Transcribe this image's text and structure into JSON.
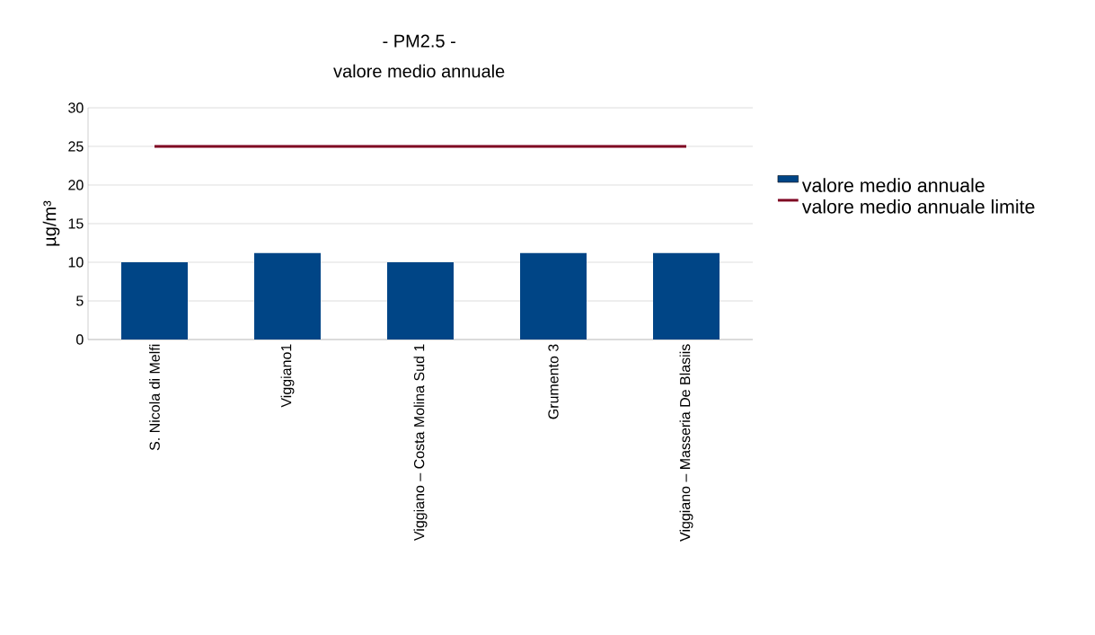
{
  "chart_data": {
    "type": "bar",
    "title": "- PM2.5 -",
    "subtitle": "valore medio annuale",
    "ylabel": "µg/m³",
    "categories": [
      "S. Nicola di Melfi",
      "Viggiano1",
      "Viggiano – Costa Molina Sud 1",
      "Grumento 3",
      "Viggiano – Masseria De Blasiis"
    ],
    "series": [
      {
        "name": "valore medio annuale",
        "color": "#004586",
        "values": [
          10,
          11.2,
          10,
          11.2,
          11.2
        ]
      },
      {
        "name": "valore medio annuale limite",
        "type": "line",
        "color": "#7e0021",
        "values": [
          25,
          25,
          25,
          25,
          25
        ]
      }
    ],
    "ylim": [
      0,
      30
    ],
    "yticks": [
      0,
      5,
      10,
      15,
      20,
      25,
      30
    ],
    "grid": "y",
    "legend": "right"
  }
}
